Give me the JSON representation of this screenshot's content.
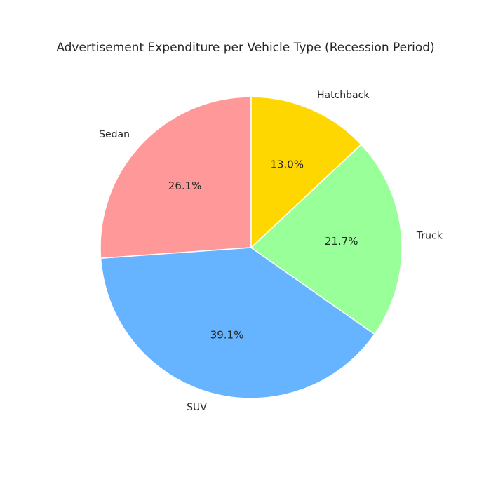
{
  "chart_data": {
    "type": "pie",
    "title": "Advertisement Expenditure per Vehicle Type (Recession Period)",
    "start_angle_deg": 90,
    "direction": "counterclockwise",
    "legend": "none",
    "slices": [
      {
        "label": "Sedan",
        "value": 26.1,
        "pct_label": "26.1%",
        "color": "#ff9999"
      },
      {
        "label": "SUV",
        "value": 39.1,
        "pct_label": "39.1%",
        "color": "#66b3ff"
      },
      {
        "label": "Truck",
        "value": 21.7,
        "pct_label": "21.7%",
        "color": "#99ff99"
      },
      {
        "label": "Hatchback",
        "value": 13.0,
        "pct_label": "13.0%",
        "color": "#ffd700"
      }
    ]
  }
}
